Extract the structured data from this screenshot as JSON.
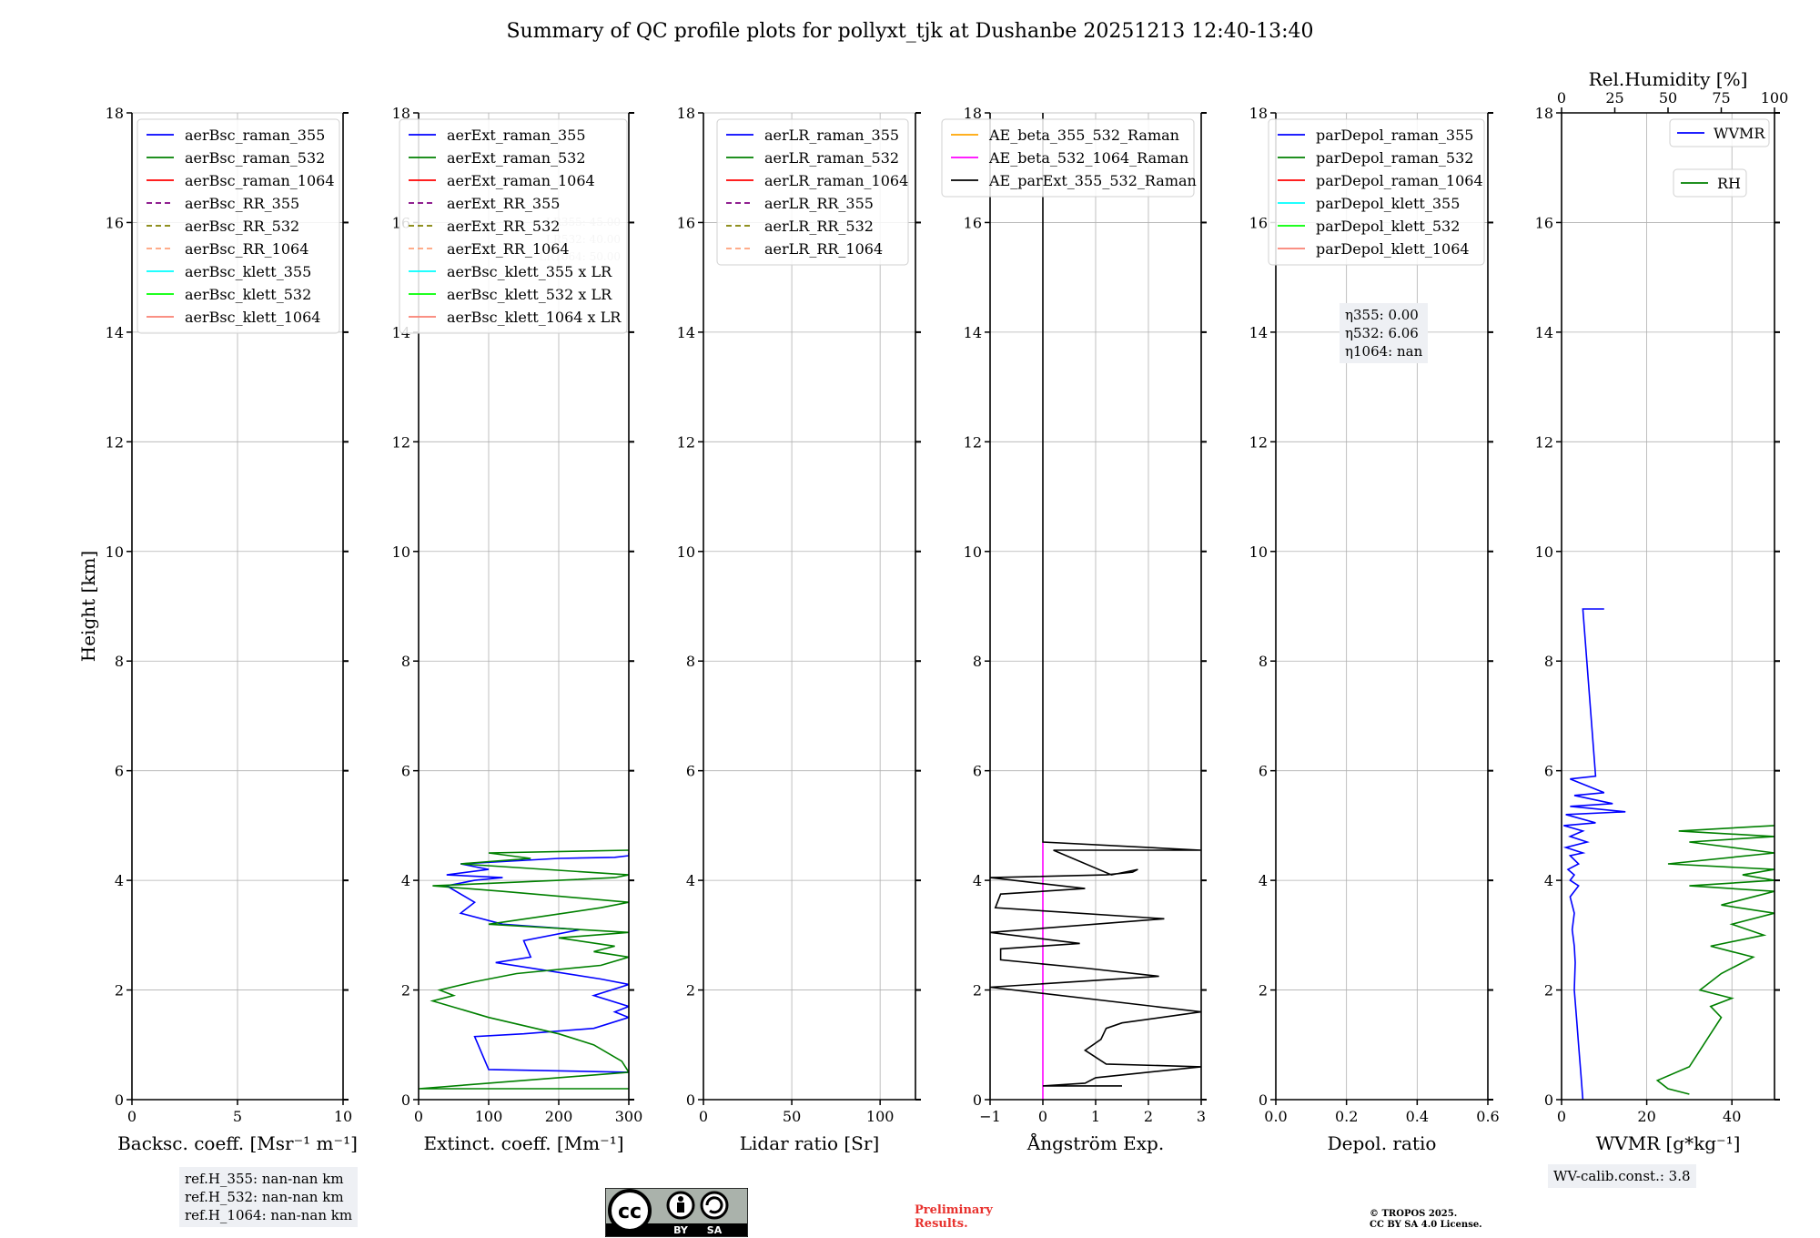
{
  "title": "Summary of QC profile plots for pollyxt_tjk at Dushanbe 20251213 12:40-13:40",
  "chart_data": [
    {
      "type": "line",
      "id": "bsc",
      "xlabel": "Backsc. coeff. [Msr⁻¹ m⁻¹]",
      "ylabel": "Height [km]",
      "xlim": [
        0,
        10
      ],
      "ylim": [
        0,
        18
      ],
      "xticks": [
        0,
        5,
        10
      ],
      "xtick_labels": [
        "0",
        "5",
        "10"
      ],
      "yticks": [
        0,
        2,
        4,
        6,
        8,
        10,
        12,
        14,
        16,
        18
      ],
      "grid": true,
      "legend_position": "upper-left",
      "legend": [
        {
          "label": "aerBsc_raman_355",
          "color": "#0000ff",
          "dash": "solid"
        },
        {
          "label": "aerBsc_raman_532",
          "color": "#008000",
          "dash": "solid"
        },
        {
          "label": "aerBsc_raman_1064",
          "color": "#ff0000",
          "dash": "solid"
        },
        {
          "label": "aerBsc_RR_355",
          "color": "#800080",
          "dash": "dashed"
        },
        {
          "label": "aerBsc_RR_532",
          "color": "#808000",
          "dash": "dashed"
        },
        {
          "label": "aerBsc_RR_1064",
          "color": "#ffa07a",
          "dash": "dashed"
        },
        {
          "label": "aerBsc_klett_355",
          "color": "#00ffff",
          "dash": "solid"
        },
        {
          "label": "aerBsc_klett_532",
          "color": "#00ff00",
          "dash": "solid"
        },
        {
          "label": "aerBsc_klett_1064",
          "color": "#fa8072",
          "dash": "solid"
        }
      ],
      "series": []
    },
    {
      "type": "line",
      "id": "ext",
      "xlabel": "Extinct. coeff. [Mm⁻¹]",
      "xlim": [
        0,
        300
      ],
      "ylim": [
        0,
        18
      ],
      "xticks": [
        0,
        100,
        200,
        300
      ],
      "xtick_labels": [
        "0",
        "100",
        "200",
        "300"
      ],
      "yticks": [
        0,
        2,
        4,
        6,
        8,
        10,
        12,
        14,
        16,
        18
      ],
      "grid": true,
      "legend_position": "upper-left",
      "legend": [
        {
          "label": "aerExt_raman_355",
          "color": "#0000ff",
          "dash": "solid"
        },
        {
          "label": "aerExt_raman_532",
          "color": "#008000",
          "dash": "solid"
        },
        {
          "label": "aerExt_raman_1064",
          "color": "#ff0000",
          "dash": "solid"
        },
        {
          "label": "aerExt_RR_355",
          "color": "#800080",
          "dash": "dashed"
        },
        {
          "label": "aerExt_RR_532",
          "color": "#808000",
          "dash": "dashed"
        },
        {
          "label": "aerExt_RR_1064",
          "color": "#ffa07a",
          "dash": "dashed"
        },
        {
          "label": "aerBsc_klett_355 x LR",
          "color": "#00ffff",
          "dash": "solid"
        },
        {
          "label": "aerBsc_klett_532 x LR",
          "color": "#00ff00",
          "dash": "solid"
        },
        {
          "label": "aerBsc_klett_1064 x LR",
          "color": "#fa8072",
          "dash": "solid"
        }
      ],
      "lr_annotations": [
        {
          "label": "LR355: 45.00",
          "value": 45.0
        },
        {
          "label": "LR532: 40.00",
          "value": 40.0
        },
        {
          "label": "LR1064: 50.00",
          "value": 50.0
        }
      ],
      "series": [
        {
          "name": "aerExt_raman_355",
          "color": "#0000ff",
          "x": [
            300,
            300,
            100,
            80,
            150,
            250,
            300,
            280,
            300,
            250,
            300,
            260,
            110,
            160,
            150,
            230,
            120,
            60,
            80,
            40,
            80,
            120,
            40,
            100,
            60,
            200,
            280,
            300,
            300
          ],
          "y": [
            0.55,
            0.5,
            0.55,
            1.15,
            1.2,
            1.3,
            1.5,
            1.6,
            1.7,
            1.9,
            2.1,
            2.2,
            2.5,
            2.6,
            2.9,
            3.1,
            3.2,
            3.4,
            3.6,
            3.9,
            4.0,
            4.05,
            4.1,
            4.2,
            4.3,
            4.4,
            4.42,
            4.45,
            4.5
          ]
        },
        {
          "name": "aerExt_raman_532",
          "color": "#008000",
          "x": [
            300,
            0,
            300,
            290,
            250,
            200,
            150,
            100,
            60,
            20,
            50,
            30,
            80,
            140,
            260,
            300,
            250,
            280,
            200,
            300,
            100,
            180,
            260,
            300,
            120,
            20,
            200,
            280,
            300,
            60,
            160,
            100,
            300
          ],
          "y": [
            0.2,
            0.2,
            0.5,
            0.7,
            1.0,
            1.2,
            1.35,
            1.5,
            1.65,
            1.8,
            1.9,
            2.0,
            2.15,
            2.3,
            2.45,
            2.6,
            2.7,
            2.8,
            2.95,
            3.05,
            3.2,
            3.35,
            3.5,
            3.6,
            3.8,
            3.9,
            4.0,
            4.05,
            4.1,
            4.3,
            4.4,
            4.5,
            4.55
          ]
        }
      ]
    },
    {
      "type": "line",
      "id": "lr",
      "xlabel": "Lidar ratio [Sr]",
      "xlim": [
        0,
        120
      ],
      "ylim": [
        0,
        18
      ],
      "xticks": [
        0,
        50,
        100
      ],
      "xtick_labels": [
        "0",
        "50",
        "100"
      ],
      "yticks": [
        0,
        2,
        4,
        6,
        8,
        10,
        12,
        14,
        16,
        18
      ],
      "grid": true,
      "legend_position": "upper-left",
      "legend": [
        {
          "label": "aerLR_raman_355",
          "color": "#0000ff",
          "dash": "solid"
        },
        {
          "label": "aerLR_raman_532",
          "color": "#008000",
          "dash": "solid"
        },
        {
          "label": "aerLR_raman_1064",
          "color": "#ff0000",
          "dash": "solid"
        },
        {
          "label": "aerLR_RR_355",
          "color": "#800080",
          "dash": "dashed"
        },
        {
          "label": "aerLR_RR_532",
          "color": "#808000",
          "dash": "dashed"
        },
        {
          "label": "aerLR_RR_1064",
          "color": "#ffa07a",
          "dash": "dashed"
        }
      ],
      "series": []
    },
    {
      "type": "line",
      "id": "ae",
      "xlabel": "Ångström Exp.",
      "xlim": [
        -1,
        3
      ],
      "ylim": [
        0,
        18
      ],
      "xticks": [
        -1,
        0,
        1,
        2,
        3
      ],
      "xtick_labels": [
        "−1",
        "0",
        "1",
        "2",
        "3"
      ],
      "yticks": [
        0,
        2,
        4,
        6,
        8,
        10,
        12,
        14,
        16,
        18
      ],
      "grid": true,
      "legend_position": "upper-left",
      "legend": [
        {
          "label": "AE_beta_355_532_Raman",
          "color": "#ffa500",
          "dash": "solid"
        },
        {
          "label": "AE_beta_532_1064_Raman",
          "color": "#ff00ff",
          "dash": "solid"
        },
        {
          "label": "AE_parExt_355_532_Raman",
          "color": "#000000",
          "dash": "solid"
        }
      ],
      "series": [
        {
          "name": "AE_beta_532_1064_Raman",
          "color": "#ff00ff",
          "x": [
            0,
            0
          ],
          "y": [
            0,
            4.7
          ]
        },
        {
          "name": "AE_parExt_355_532_Raman",
          "color": "#000000",
          "x": [
            1.5,
            0,
            0.8,
            1.0,
            3,
            1.2,
            0.8,
            1.1,
            1.2,
            1.5,
            3,
            -1,
            2.2,
            0.8,
            -0.8,
            -0.8,
            0.7,
            -1,
            2.3,
            -0.9,
            -0.8,
            0.8,
            -1,
            1.2,
            1.7,
            1.8,
            1.3,
            0.2,
            3,
            0,
            0,
            0
          ],
          "y": [
            0.25,
            0.25,
            0.3,
            0.4,
            0.6,
            0.65,
            0.9,
            1.1,
            1.3,
            1.4,
            1.6,
            2.05,
            2.25,
            2.4,
            2.55,
            2.75,
            2.85,
            3.05,
            3.3,
            3.5,
            3.75,
            3.85,
            4.05,
            4.1,
            4.15,
            4.2,
            4.1,
            4.55,
            4.55,
            4.7,
            10,
            18
          ]
        }
      ]
    },
    {
      "type": "line",
      "id": "depol",
      "xlabel": "Depol. ratio",
      "xlim": [
        0,
        0.6
      ],
      "ylim": [
        0,
        18
      ],
      "xticks": [
        0,
        0.2,
        0.4,
        0.6
      ],
      "xtick_labels": [
        "0.0",
        "0.2",
        "0.4",
        "0.6"
      ],
      "yticks": [
        0,
        2,
        4,
        6,
        8,
        10,
        12,
        14,
        16,
        18
      ],
      "grid": true,
      "legend_position": "upper-left",
      "legend": [
        {
          "label": "parDepol_raman_355",
          "color": "#0000ff",
          "dash": "solid"
        },
        {
          "label": "parDepol_raman_532",
          "color": "#008000",
          "dash": "solid"
        },
        {
          "label": "parDepol_raman_1064",
          "color": "#ff0000",
          "dash": "solid"
        },
        {
          "label": "parDepol_klett_355",
          "color": "#00ffff",
          "dash": "solid"
        },
        {
          "label": "parDepol_klett_532",
          "color": "#00ff00",
          "dash": "solid"
        },
        {
          "label": "parDepol_klett_1064",
          "color": "#fa8072",
          "dash": "solid"
        }
      ],
      "eta": [
        "η355: 0.00",
        "η532: 6.06",
        "η1064: nan"
      ],
      "series": []
    },
    {
      "type": "line",
      "id": "wv",
      "xlabel": "WVMR [g*kg⁻¹]",
      "xlim": [
        0,
        50
      ],
      "ylim": [
        0,
        18
      ],
      "xticks": [
        0,
        20,
        40
      ],
      "xtick_labels": [
        "0",
        "20",
        "40"
      ],
      "x2label": "Rel.Humidity [%]",
      "x2lim": [
        0,
        100
      ],
      "x2ticks": [
        0,
        25,
        50,
        75,
        100
      ],
      "x2tick_labels": [
        "0",
        "25",
        "50",
        "75",
        "100"
      ],
      "yticks": [
        0,
        2,
        4,
        6,
        8,
        10,
        12,
        14,
        16,
        18
      ],
      "grid": true,
      "legend_position": "upper-right",
      "legend": [
        {
          "label": "WVMR",
          "color": "#0000ff",
          "dash": "solid"
        },
        {
          "label": "RH",
          "color": "#008000",
          "dash": "solid"
        }
      ],
      "series": [
        {
          "name": "WVMR",
          "color": "#0000ff",
          "axis": "x",
          "x": [
            5,
            4.5,
            4,
            3.5,
            3,
            3.2,
            3,
            2.5,
            3,
            2,
            4,
            2,
            3,
            1.5,
            4,
            2,
            5,
            1,
            6,
            2,
            5,
            0.5,
            8,
            1,
            15,
            2,
            12,
            3,
            10,
            2,
            8,
            5,
            10
          ],
          "y": [
            0,
            0.5,
            1,
            1.5,
            2,
            2.5,
            2.8,
            3.1,
            3.4,
            3.7,
            3.9,
            4.0,
            4.1,
            4.2,
            4.3,
            4.45,
            4.5,
            4.6,
            4.7,
            4.8,
            4.9,
            5.0,
            5.05,
            5.2,
            5.25,
            5.35,
            5.4,
            5.55,
            5.6,
            5.85,
            5.9,
            8.95,
            8.95
          ]
        },
        {
          "name": "RH",
          "color": "#008000",
          "axis": "x2",
          "x": [
            60,
            50,
            45,
            60,
            65,
            70,
            75,
            70,
            80,
            65,
            75,
            90,
            70,
            95,
            80,
            100,
            75,
            90,
            100,
            60,
            100,
            85,
            100,
            50,
            100,
            60,
            100,
            55,
            100
          ],
          "y": [
            0.1,
            0.2,
            0.35,
            0.6,
            0.9,
            1.2,
            1.5,
            1.7,
            1.85,
            2.0,
            2.3,
            2.6,
            2.8,
            3.0,
            3.2,
            3.4,
            3.55,
            3.7,
            3.8,
            3.9,
            4.0,
            4.1,
            4.2,
            4.3,
            4.5,
            4.7,
            4.8,
            4.9,
            5.0
          ]
        }
      ],
      "wv_calib": "WV-calib.const.: 3.8"
    }
  ],
  "ref_heights": [
    "ref.H_355: nan-nan km",
    "ref.H_532: nan-nan km",
    "ref.H_1064: nan-nan km"
  ],
  "license_badge": {
    "cc": "cc",
    "by": "BY",
    "sa": "SA"
  },
  "preliminary": [
    "Preliminary",
    "Results."
  ],
  "copyright": [
    "© TROPOS 2025.",
    "CC BY SA 4.0 License."
  ]
}
